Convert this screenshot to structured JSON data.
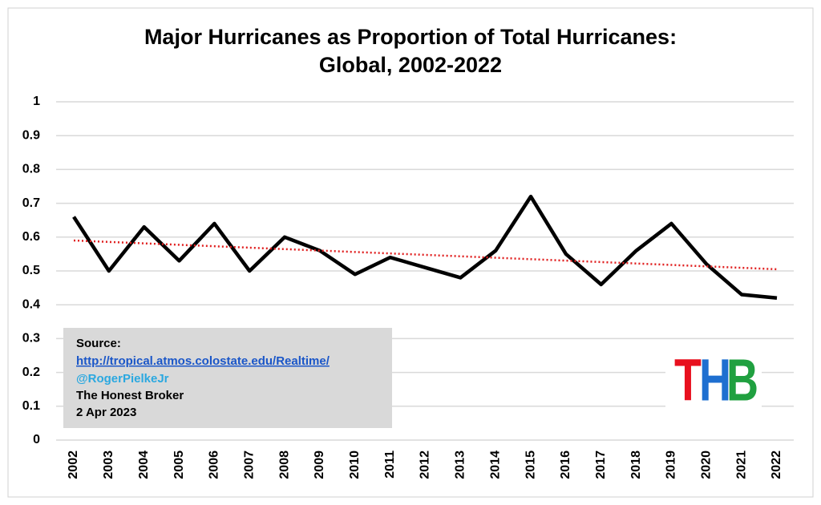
{
  "chart_data": {
    "type": "line",
    "title": [
      "Major Hurricanes as Proportion of Total Hurricanes:",
      "Global, 2002-2022"
    ],
    "categories": [
      "2002",
      "2003",
      "2004",
      "2005",
      "2006",
      "2007",
      "2008",
      "2009",
      "2010",
      "2011",
      "2012",
      "2013",
      "2014",
      "2015",
      "2016",
      "2017",
      "2018",
      "2019",
      "2020",
      "2021",
      "2022"
    ],
    "series": [
      {
        "color": "#000000",
        "values": [
          0.66,
          0.5,
          0.63,
          0.53,
          0.64,
          0.5,
          0.6,
          0.56,
          0.49,
          0.54,
          0.51,
          0.48,
          0.56,
          0.72,
          0.55,
          0.46,
          0.56,
          0.64,
          0.52,
          0.43,
          0.42
        ]
      }
    ],
    "trend": {
      "color": "#e02020",
      "values": [
        0.59,
        0.505
      ]
    },
    "ylim": [
      0,
      1
    ],
    "yticks": [
      0,
      0.1,
      0.2,
      0.3,
      0.4,
      0.5,
      0.6,
      0.7,
      0.8,
      0.9,
      1
    ],
    "grid": true,
    "source": {
      "heading": "Source:",
      "url": "http://tropical.atmos.colostate.edu/Realtime/",
      "handle": "@RogerPielkeJr",
      "publisher": "The Honest Broker",
      "date": "2 Apr 2023"
    },
    "logo": [
      {
        "text": "T",
        "color": "#e8101e"
      },
      {
        "text": "H",
        "color": "#1e6fd0"
      },
      {
        "text": "B",
        "color": "#20a040"
      }
    ]
  }
}
